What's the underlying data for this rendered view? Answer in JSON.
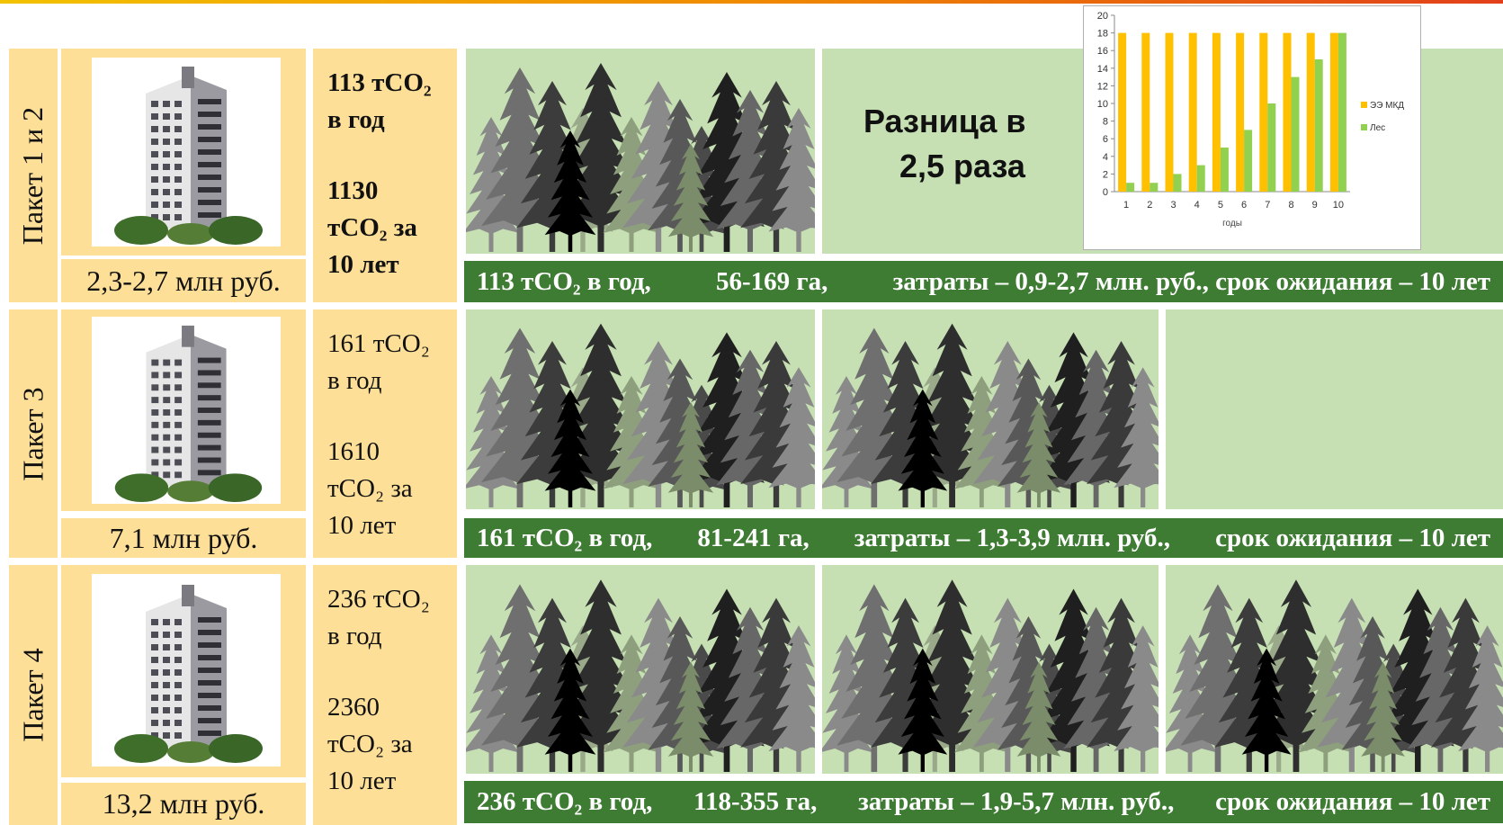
{
  "packages": [
    {
      "label": "Пакет 1 и 2",
      "cost": "2,3-2,7 млн руб.",
      "co2_year": "113 тCO₂",
      "co2_year_unit": "в год",
      "co2_total": "1130",
      "co2_total_unit": "тCO₂ за",
      "co2_total_period": "10 лет",
      "summary": [
        "113 тCO₂ в год,",
        "56-169 га,",
        "затраты – 0,9-2,7 млн. руб., срок ожидания – 10 лет"
      ],
      "forest_blocks": 1
    },
    {
      "label": "Пакет 3",
      "cost": "7,1 млн руб.",
      "co2_year": "161 тCO₂",
      "co2_year_unit": "в год",
      "co2_total": "1610",
      "co2_total_unit": "тCO₂ за",
      "co2_total_period": "10 лет",
      "summary": [
        "161 тCO₂ в год,",
        "81-241 га,",
        "затраты – 1,3-3,9 млн. руб.,",
        "срок ожидания – 10 лет"
      ],
      "forest_blocks": 2
    },
    {
      "label": "Пакет 4",
      "cost": "13,2 млн руб.",
      "co2_year": "236 тCO₂",
      "co2_year_unit": "в год",
      "co2_total": "2360",
      "co2_total_unit": "тCO₂ за",
      "co2_total_period": "10 лет",
      "summary": [
        "236 тCO₂ в год,",
        "118-355 га,",
        "затраты – 1,9-5,7 млн. руб.,",
        "срок ожидания – 10 лет"
      ],
      "forest_blocks": 3
    }
  ],
  "difference": {
    "line1": "Разница в",
    "line2": "2,5 раза"
  },
  "colors": {
    "tan": "#fddf98",
    "forest_bg": "#c6e0b4",
    "summary_bar": "#3e7b33",
    "series_mkd": "#ffc000",
    "series_forest": "#92d050"
  },
  "icons": {
    "building": "building-photo",
    "forest": "spruce-forest-illustration"
  },
  "chart_data": {
    "type": "bar",
    "categories": [
      "1",
      "2",
      "3",
      "4",
      "5",
      "6",
      "7",
      "8",
      "9",
      "10"
    ],
    "series": [
      {
        "name": "ЭЭ МКД",
        "values": [
          18,
          18,
          18,
          18,
          18,
          18,
          18,
          18,
          18,
          18
        ]
      },
      {
        "name": "Лес",
        "values": [
          1,
          1,
          2,
          3,
          5,
          7,
          10,
          13,
          15,
          18
        ]
      }
    ],
    "xlabel": "годы",
    "ylabel": "",
    "ylim": [
      0,
      20
    ],
    "yticks": [
      0,
      2,
      4,
      6,
      8,
      10,
      12,
      14,
      16,
      18,
      20
    ],
    "legend": "right",
    "grid": false
  }
}
